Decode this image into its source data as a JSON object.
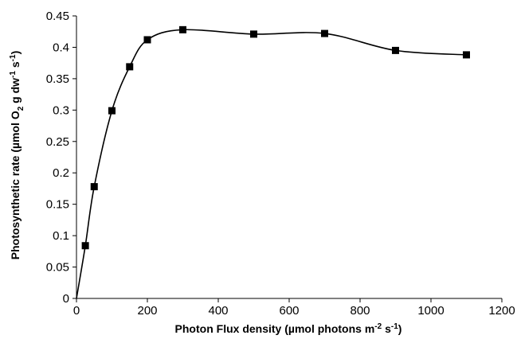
{
  "chart_data": {
    "type": "scatter",
    "title": "",
    "xlabel": {
      "main": "Photon Flux density (µmol photons m",
      "sup1": "-2",
      "mid": " s",
      "sup2": "-1",
      "end": ")"
    },
    "ylabel": {
      "main": "Photosynthetic rate (µmol O",
      "sub": "2",
      "mid": " g dw",
      "sup1": "-1",
      "mid2": " s",
      "sup2": "-1",
      "end": ")"
    },
    "xlim": [
      0,
      1200
    ],
    "ylim": [
      0,
      0.45
    ],
    "x_ticks": [
      0,
      200,
      400,
      600,
      800,
      1000,
      1200
    ],
    "x_tick_labels": [
      "0",
      "200",
      "400",
      "600",
      "800",
      "1000",
      "1200"
    ],
    "y_ticks": [
      0,
      0.05,
      0.1,
      0.15,
      0.2,
      0.25,
      0.3,
      0.35,
      0.4,
      0.45
    ],
    "y_tick_labels": [
      "0",
      "0.05",
      "0.1",
      "0.15",
      "0.2",
      "0.25",
      "0.3",
      "0.35",
      "0.4",
      "0.45"
    ],
    "grid": false,
    "legend": "none",
    "series": [
      {
        "marker": "square",
        "color": "#000000",
        "line": "smooth",
        "points": [
          {
            "x": 0,
            "y": 0,
            "marker": false
          },
          {
            "x": 25,
            "y": 0.084,
            "marker": true
          },
          {
            "x": 50,
            "y": 0.178,
            "marker": true
          },
          {
            "x": 100,
            "y": 0.299,
            "marker": true
          },
          {
            "x": 150,
            "y": 0.369,
            "marker": true
          },
          {
            "x": 200,
            "y": 0.412,
            "marker": true
          },
          {
            "x": 300,
            "y": 0.428,
            "marker": true
          },
          {
            "x": 500,
            "y": 0.421,
            "marker": true
          },
          {
            "x": 700,
            "y": 0.422,
            "marker": true
          },
          {
            "x": 900,
            "y": 0.395,
            "marker": true
          },
          {
            "x": 1100,
            "y": 0.388,
            "marker": true
          }
        ]
      }
    ]
  }
}
